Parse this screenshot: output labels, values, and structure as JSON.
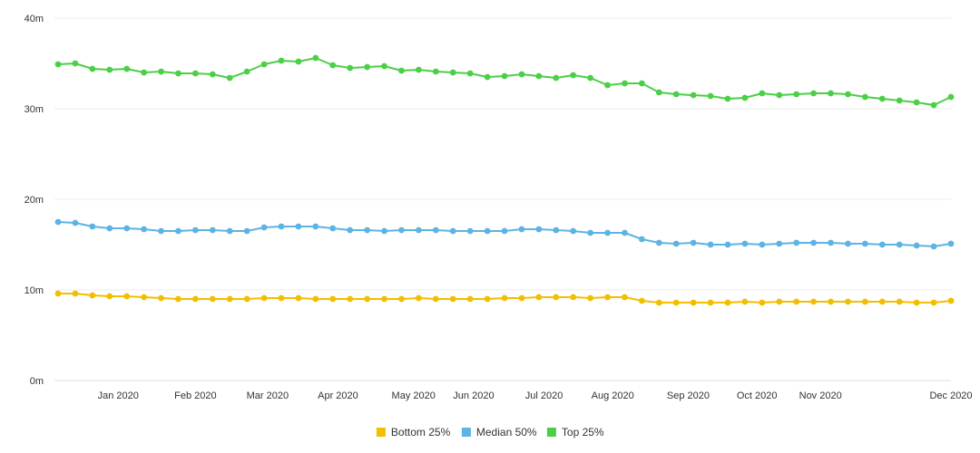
{
  "chart_data": {
    "type": "line",
    "title": "",
    "xlabel": "",
    "ylabel": "",
    "ylim": [
      0,
      40000000
    ],
    "y_ticks": [
      {
        "value": 0,
        "label": "0m"
      },
      {
        "value": 10000000,
        "label": "10m"
      },
      {
        "value": 20000000,
        "label": "20m"
      },
      {
        "value": 30000000,
        "label": "30m"
      },
      {
        "value": 40000000,
        "label": "40m"
      }
    ],
    "x_ticks": [
      {
        "index": 3.5,
        "label": "Jan 2020"
      },
      {
        "index": 8,
        "label": "Feb 2020"
      },
      {
        "index": 12.2,
        "label": "Mar 2020"
      },
      {
        "index": 16.3,
        "label": "Apr 2020"
      },
      {
        "index": 20.7,
        "label": "May 2020"
      },
      {
        "index": 24.2,
        "label": "Jun 2020"
      },
      {
        "index": 28.3,
        "label": "Jul 2020"
      },
      {
        "index": 32.3,
        "label": "Aug 2020"
      },
      {
        "index": 36.7,
        "label": "Sep 2020"
      },
      {
        "index": 40.7,
        "label": "Oct 2020"
      },
      {
        "index": 44.4,
        "label": "Nov 2020"
      },
      {
        "index": 52,
        "label": "Dec 2020"
      }
    ],
    "n_points": 53,
    "legend_position": "bottom-center",
    "grid": true,
    "series": [
      {
        "name": "Bottom 25%",
        "color": "#F2BE00",
        "values": [
          9600000,
          9600000,
          9400000,
          9300000,
          9300000,
          9200000,
          9100000,
          9000000,
          9000000,
          9000000,
          9000000,
          9000000,
          9100000,
          9100000,
          9100000,
          9000000,
          9000000,
          9000000,
          9000000,
          9000000,
          9000000,
          9100000,
          9000000,
          9000000,
          9000000,
          9000000,
          9100000,
          9100000,
          9200000,
          9200000,
          9200000,
          9100000,
          9200000,
          9200000,
          8800000,
          8600000,
          8600000,
          8600000,
          8600000,
          8600000,
          8700000,
          8600000,
          8700000,
          8700000,
          8700000,
          8700000,
          8700000,
          8700000,
          8700000,
          8700000,
          8600000,
          8600000,
          8800000
        ]
      },
      {
        "name": "Median 50%",
        "color": "#5DB3E4",
        "values": [
          17500000,
          17400000,
          17000000,
          16800000,
          16800000,
          16700000,
          16500000,
          16500000,
          16600000,
          16600000,
          16500000,
          16500000,
          16900000,
          17000000,
          17000000,
          17000000,
          16800000,
          16600000,
          16600000,
          16500000,
          16600000,
          16600000,
          16600000,
          16500000,
          16500000,
          16500000,
          16500000,
          16700000,
          16700000,
          16600000,
          16500000,
          16300000,
          16300000,
          16300000,
          15600000,
          15200000,
          15100000,
          15200000,
          15000000,
          15000000,
          15100000,
          15000000,
          15100000,
          15200000,
          15200000,
          15200000,
          15100000,
          15100000,
          15000000,
          15000000,
          14900000,
          14800000,
          15100000
        ]
      },
      {
        "name": "Top 25%",
        "color": "#4BCF46",
        "values": [
          34900000,
          35000000,
          34400000,
          34300000,
          34400000,
          34000000,
          34100000,
          33900000,
          33900000,
          33800000,
          33400000,
          34100000,
          34900000,
          35300000,
          35200000,
          35600000,
          34800000,
          34500000,
          34600000,
          34700000,
          34200000,
          34300000,
          34100000,
          34000000,
          33900000,
          33500000,
          33600000,
          33800000,
          33600000,
          33400000,
          33700000,
          33400000,
          32600000,
          32800000,
          32800000,
          31800000,
          31600000,
          31500000,
          31400000,
          31100000,
          31200000,
          31700000,
          31500000,
          31600000,
          31700000,
          31700000,
          31600000,
          31300000,
          31100000,
          30900000,
          30700000,
          30400000,
          31300000
        ]
      }
    ]
  }
}
